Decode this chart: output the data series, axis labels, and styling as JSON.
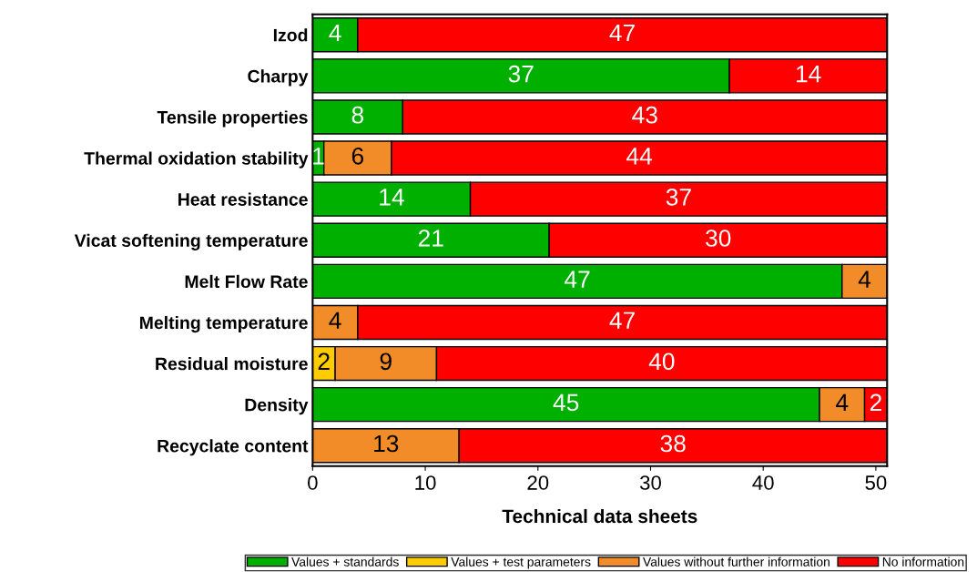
{
  "chart_data": {
    "type": "bar",
    "orientation": "horizontal",
    "stacked": true,
    "data_labels": true,
    "xlabel": "Technical data sheets",
    "categories": [
      "Izod",
      "Charpy",
      "Tensile properties",
      "Thermal oxidation stability",
      "Heat resistance",
      "Vicat softening temperature",
      "Melt Flow Rate",
      "Melting temperature",
      "Residual moisture",
      "Density",
      "Recyclate content"
    ],
    "series": [
      {
        "name": "Values + standards",
        "color": "#00b000",
        "values": [
          4,
          37,
          8,
          1,
          14,
          21,
          47,
          null,
          null,
          45,
          null
        ]
      },
      {
        "name": "Values + test parameters",
        "color": "#ffcc00",
        "values": [
          null,
          null,
          null,
          null,
          null,
          null,
          null,
          null,
          2,
          null,
          null
        ]
      },
      {
        "name": "Values without further information",
        "color": "#f28c28",
        "values": [
          null,
          null,
          null,
          6,
          null,
          null,
          4,
          4,
          9,
          4,
          13
        ]
      },
      {
        "name": "No information",
        "color": "#ff0000",
        "values": [
          47,
          14,
          43,
          44,
          37,
          30,
          null,
          47,
          40,
          2,
          38
        ]
      }
    ],
    "xlim": [
      0,
      51
    ],
    "xticks": [
      0,
      10,
      20,
      30,
      40,
      50
    ],
    "grid": false,
    "legend": "bottom"
  }
}
